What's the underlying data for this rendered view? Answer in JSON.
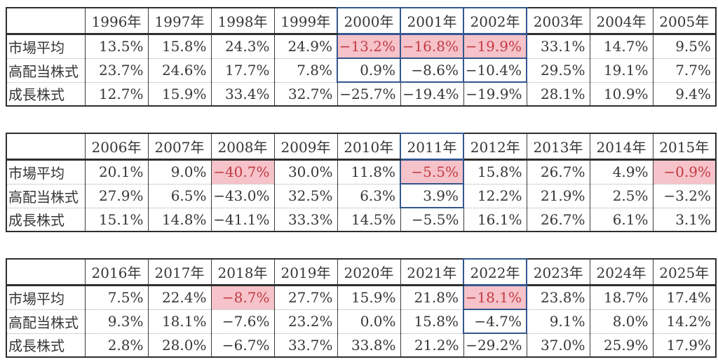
{
  "page": {
    "background": "#ffffff",
    "text_color": "#363636",
    "accent_blue_border": "#35568f",
    "highlight_pink_background": "#f5c3c9",
    "highlight_red_text": "#c23b45"
  },
  "tables": [
    {
      "name": "returns-table-1996-2005",
      "corner_label": "",
      "years": [
        "1996年",
        "1997年",
        "1998年",
        "1999年",
        "2000年",
        "2001年",
        "2002年",
        "2003年",
        "2004年",
        "2005年"
      ],
      "rows": [
        {
          "label": "市場平均",
          "values": [
            "13.5%",
            "15.8%",
            "24.3%",
            "24.9%",
            "−13.2%",
            "−16.8%",
            "−19.9%",
            "33.1%",
            "14.7%",
            "9.5%"
          ]
        },
        {
          "label": "高配当株式",
          "values": [
            "23.7%",
            "24.6%",
            "17.7%",
            "7.8%",
            "0.9%",
            "−8.6%",
            "−10.4%",
            "29.5%",
            "19.1%",
            "7.7%"
          ]
        },
        {
          "label": "成長株式",
          "values": [
            "12.7%",
            "15.9%",
            "33.4%",
            "32.7%",
            "−25.7%",
            "−19.4%",
            "−19.9%",
            "28.1%",
            "10.9%",
            "9.4%"
          ]
        }
      ],
      "pink_highlight": {
        "row": "市場平均",
        "years": [
          "2000年",
          "2001年",
          "2002年"
        ]
      },
      "blue_box": {
        "years": [
          "2000年",
          "2001年",
          "2002年"
        ],
        "rows": [
          "header",
          "市場平均",
          "高配当株式"
        ]
      }
    },
    {
      "name": "returns-table-2006-2015",
      "corner_label": "",
      "years": [
        "2006年",
        "2007年",
        "2008年",
        "2009年",
        "2010年",
        "2011年",
        "2012年",
        "2013年",
        "2014年",
        "2015年"
      ],
      "rows": [
        {
          "label": "市場平均",
          "values": [
            "20.1%",
            "9.0%",
            "−40.7%",
            "30.0%",
            "11.8%",
            "−5.5%",
            "15.8%",
            "26.7%",
            "4.9%",
            "−0.9%"
          ]
        },
        {
          "label": "高配当株式",
          "values": [
            "27.9%",
            "6.5%",
            "−43.0%",
            "32.5%",
            "6.3%",
            "3.9%",
            "12.2%",
            "21.9%",
            "2.5%",
            "−3.2%"
          ]
        },
        {
          "label": "成長株式",
          "values": [
            "15.1%",
            "14.8%",
            "−41.1%",
            "33.3%",
            "14.5%",
            "−5.5%",
            "16.1%",
            "26.7%",
            "6.1%",
            "3.1%"
          ]
        }
      ],
      "pink_highlight": {
        "row": "市場平均",
        "years": [
          "2008年",
          "2011年",
          "2015年"
        ]
      },
      "blue_box": {
        "years": [
          "2011年"
        ],
        "rows": [
          "header",
          "市場平均",
          "高配当株式"
        ]
      }
    },
    {
      "name": "returns-table-2016-2025",
      "corner_label": "",
      "years": [
        "2016年",
        "2017年",
        "2018年",
        "2019年",
        "2020年",
        "2021年",
        "2022年",
        "2023年",
        "2024年",
        "2025年"
      ],
      "rows": [
        {
          "label": "市場平均",
          "values": [
            "7.5%",
            "22.4%",
            "−8.7%",
            "27.7%",
            "15.9%",
            "21.8%",
            "−18.1%",
            "23.8%",
            "18.7%",
            "17.4%"
          ]
        },
        {
          "label": "高配当株式",
          "values": [
            "9.3%",
            "18.1%",
            "−7.6%",
            "23.2%",
            "0.0%",
            "15.8%",
            "−4.7%",
            "9.1%",
            "8.0%",
            "14.2%"
          ]
        },
        {
          "label": "成長株式",
          "values": [
            "2.8%",
            "28.0%",
            "−6.7%",
            "33.7%",
            "33.8%",
            "21.2%",
            "−29.2%",
            "37.0%",
            "25.9%",
            "17.9%"
          ]
        }
      ],
      "pink_highlight": {
        "row": "市場平均",
        "years": [
          "2018年",
          "2022年"
        ]
      },
      "blue_box": {
        "years": [
          "2022年"
        ],
        "rows": [
          "header",
          "市場平均",
          "高配当株式"
        ]
      }
    }
  ]
}
